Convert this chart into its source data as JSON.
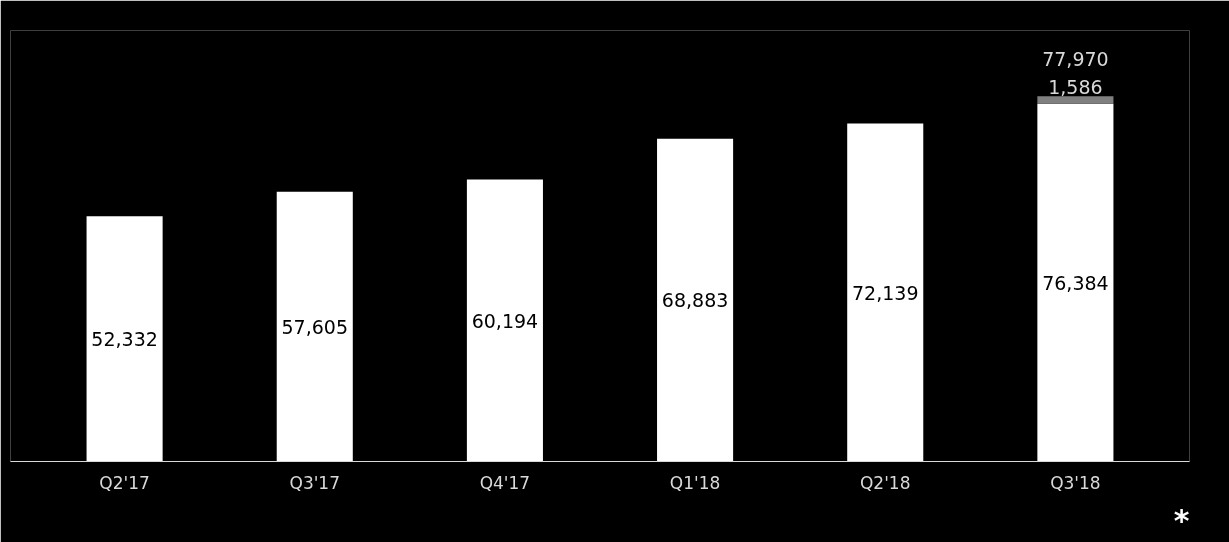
{
  "chart_data": {
    "type": "bar",
    "stacked": true,
    "categories": [
      "Q2'17",
      "Q3'17",
      "Q4'17",
      "Q1'18",
      "Q2'18",
      "Q3'18"
    ],
    "series": [
      {
        "color": "#ffffff",
        "values": [
          52332,
          57605,
          60194,
          68883,
          72139,
          76384
        ],
        "value_labels": [
          "52,332",
          "57,605",
          "60,194",
          "68,883",
          "72,139",
          "76,384"
        ]
      },
      {
        "color": "#808080",
        "values": [
          null,
          null,
          null,
          null,
          null,
          1586
        ],
        "value_labels": [
          null,
          null,
          null,
          null,
          null,
          "1,586"
        ]
      }
    ],
    "totals": [
      null,
      null,
      null,
      null,
      null,
      "77,970"
    ],
    "tick_labels": "x",
    "grid": false,
    "annotations": [
      "*"
    ]
  }
}
